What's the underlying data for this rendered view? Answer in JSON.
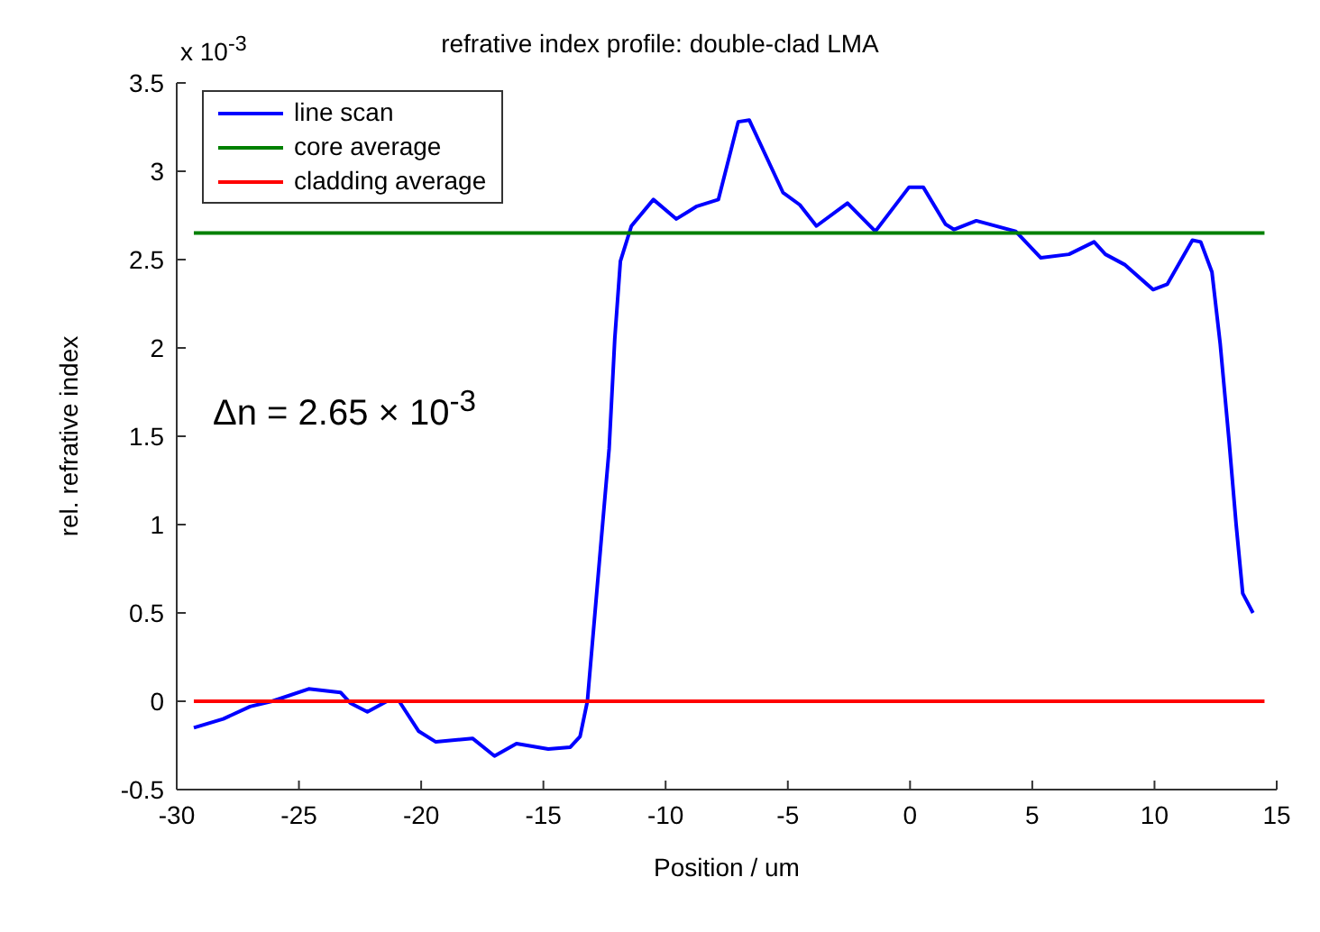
{
  "chart_data": {
    "type": "line",
    "title": "refrative index profile: double-clad LMA",
    "xlabel": "Position / um",
    "ylabel": "rel. refrative index",
    "annotations": [
      "x 10$^{-3}$",
      "Δn = 2.65 × 10$^{-3}$"
    ],
    "xlim": [
      -30,
      15
    ],
    "xticks": [
      -30,
      -25,
      -20,
      -15,
      -10,
      -5,
      0,
      5,
      10,
      15
    ],
    "ylim": [
      -0.5,
      3.5
    ],
    "yticks": [
      -0.5,
      0,
      0.5,
      1,
      1.5,
      2,
      2.5,
      3,
      3.5
    ],
    "grid": false,
    "legend": "top left",
    "marker": "none",
    "line_style": "solid",
    "series": [
      {
        "name": "line scan",
        "color": "#0000ff",
        "x": [
          -29.3,
          -28.1,
          -27.0,
          -26.1,
          -24.6,
          -23.3,
          -22.9,
          -22.2,
          -21.4,
          -20.9,
          -20.1,
          -19.4,
          -17.9,
          -17.0,
          -16.1,
          -14.8,
          -13.9,
          -13.5,
          -13.2,
          -12.66,
          -12.31,
          -12.08,
          -11.85,
          -11.4,
          -10.5,
          -9.56,
          -8.75,
          -7.84,
          -7.03,
          -6.58,
          -5.2,
          -4.51,
          -3.83,
          -2.56,
          -1.42,
          -0.04,
          0.54,
          1.45,
          1.8,
          2.71,
          4.32,
          5.35,
          6.5,
          7.53,
          7.99,
          8.8,
          9.94,
          10.52,
          11.55,
          11.89,
          12.35,
          12.69,
          13.04,
          13.34,
          13.61,
          14.03
        ],
        "values": [
          -0.15,
          -0.1,
          -0.03,
          0.0,
          0.07,
          0.05,
          -0.01,
          -0.06,
          0.0,
          0.0,
          -0.17,
          -0.23,
          -0.21,
          -0.31,
          -0.24,
          -0.27,
          -0.26,
          -0.2,
          0.0,
          0.87,
          1.43,
          2.05,
          2.49,
          2.69,
          2.84,
          2.73,
          2.8,
          2.84,
          3.28,
          3.29,
          2.88,
          2.81,
          2.69,
          2.82,
          2.66,
          2.91,
          2.91,
          2.7,
          2.67,
          2.72,
          2.66,
          2.51,
          2.53,
          2.6,
          2.53,
          2.47,
          2.33,
          2.36,
          2.61,
          2.6,
          2.43,
          2.02,
          1.49,
          1.0,
          0.61,
          0.5
        ]
      },
      {
        "name": "core average",
        "color": "#008000",
        "x": [
          -29.3,
          14.5
        ],
        "values": [
          2.65,
          2.65
        ]
      },
      {
        "name": "cladding average",
        "color": "#ff0000",
        "x": [
          -29.3,
          14.5
        ],
        "values": [
          0,
          0
        ]
      }
    ]
  }
}
